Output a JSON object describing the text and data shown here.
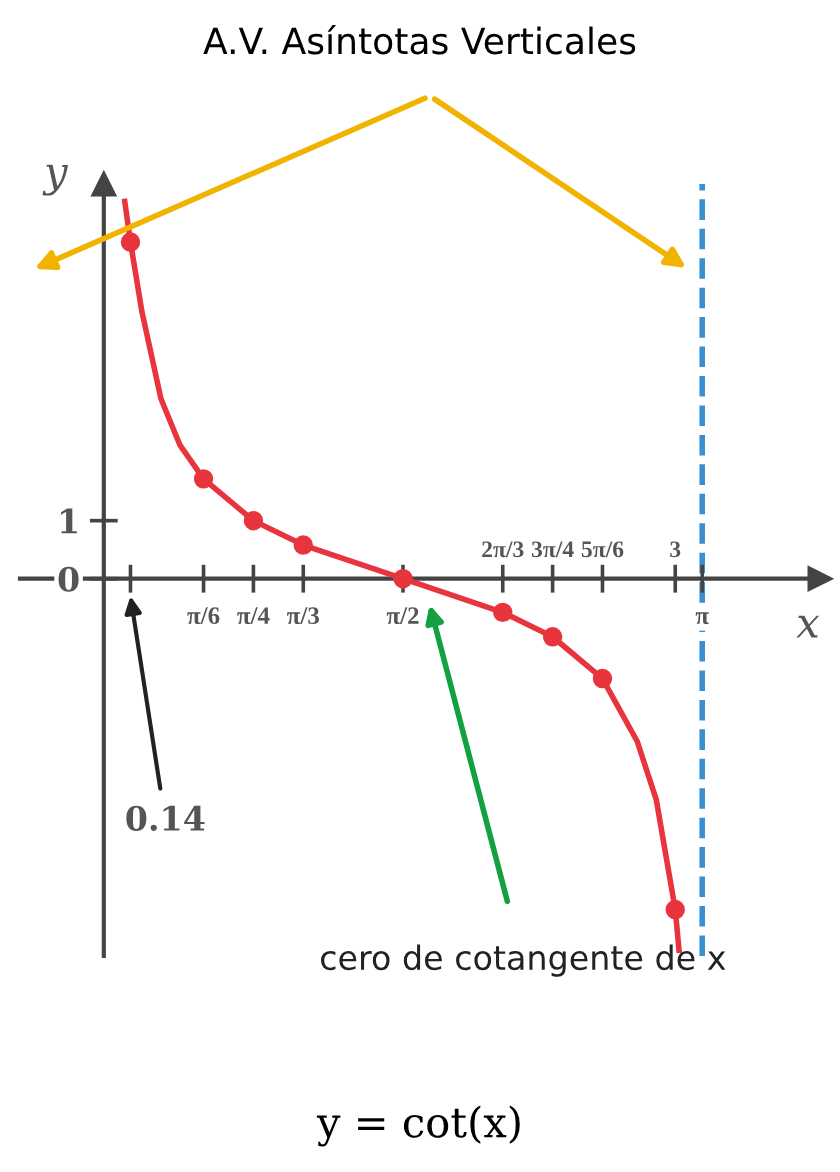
{
  "chart_data": {
    "type": "line",
    "title": "A.V. Asíntotas Verticales",
    "xlabel": "x",
    "ylabel": "y",
    "series": [
      {
        "type": "line",
        "color": "#e8343c",
        "marker": "none",
        "x": [
          0.11,
          0.14,
          0.2,
          0.3,
          0.4,
          0.5236,
          0.7854,
          1.0472,
          1.5708,
          2.0944,
          2.3562,
          2.618,
          2.8,
          2.9,
          3.0,
          3.02
        ],
        "values": [
          6.5,
          5.8,
          4.6,
          3.1,
          2.3,
          1.72,
          1.0,
          0.58,
          0,
          -0.58,
          -1.0,
          -1.72,
          -2.8,
          -3.8,
          -5.7,
          -6.4
        ]
      },
      {
        "type": "scatter",
        "color": "#e8343c",
        "marker": "circle",
        "x": [
          0.14,
          0.5236,
          0.7854,
          1.0472,
          1.5708,
          2.0944,
          2.3562,
          2.618,
          3.0
        ],
        "values": [
          5.8,
          1.72,
          1.0,
          0.58,
          0,
          -0.58,
          -1.0,
          -1.72,
          -5.7
        ]
      }
    ],
    "xlim": [
      -0.44,
      3.76
    ],
    "ylim": [
      -6.5,
      6.8
    ],
    "xticks": [
      {
        "value": 0.14,
        "label": null
      },
      {
        "value": 0.5236,
        "label": "π/6"
      },
      {
        "value": 0.7854,
        "label": "π/4"
      },
      {
        "value": 1.0472,
        "label": "π/3"
      },
      {
        "value": 1.5708,
        "label": "π/2"
      },
      {
        "value": 2.0944,
        "label": null
      },
      {
        "value": 2.3562,
        "label": null
      },
      {
        "value": 2.618,
        "label": null
      },
      {
        "value": 3.0,
        "label": null
      },
      {
        "value": 3.1416,
        "label": "π"
      }
    ],
    "x2lim": [
      -0.44,
      3.76
    ],
    "x2ticks": [
      {
        "value": 2.0944,
        "label": "2π/3"
      },
      {
        "value": 2.3562,
        "label": "3π/4"
      },
      {
        "value": 2.618,
        "label": "5π/6"
      },
      3
    ],
    "yticks": [
      0,
      1
    ],
    "ref_lines": [
      {
        "axis": "x",
        "value": 3.1416,
        "color": "#3a8fd0",
        "line_style": "dashed"
      }
    ],
    "annotations": [
      "0.14",
      "cero de cotangente de x",
      "y = cot(x)"
    ]
  }
}
